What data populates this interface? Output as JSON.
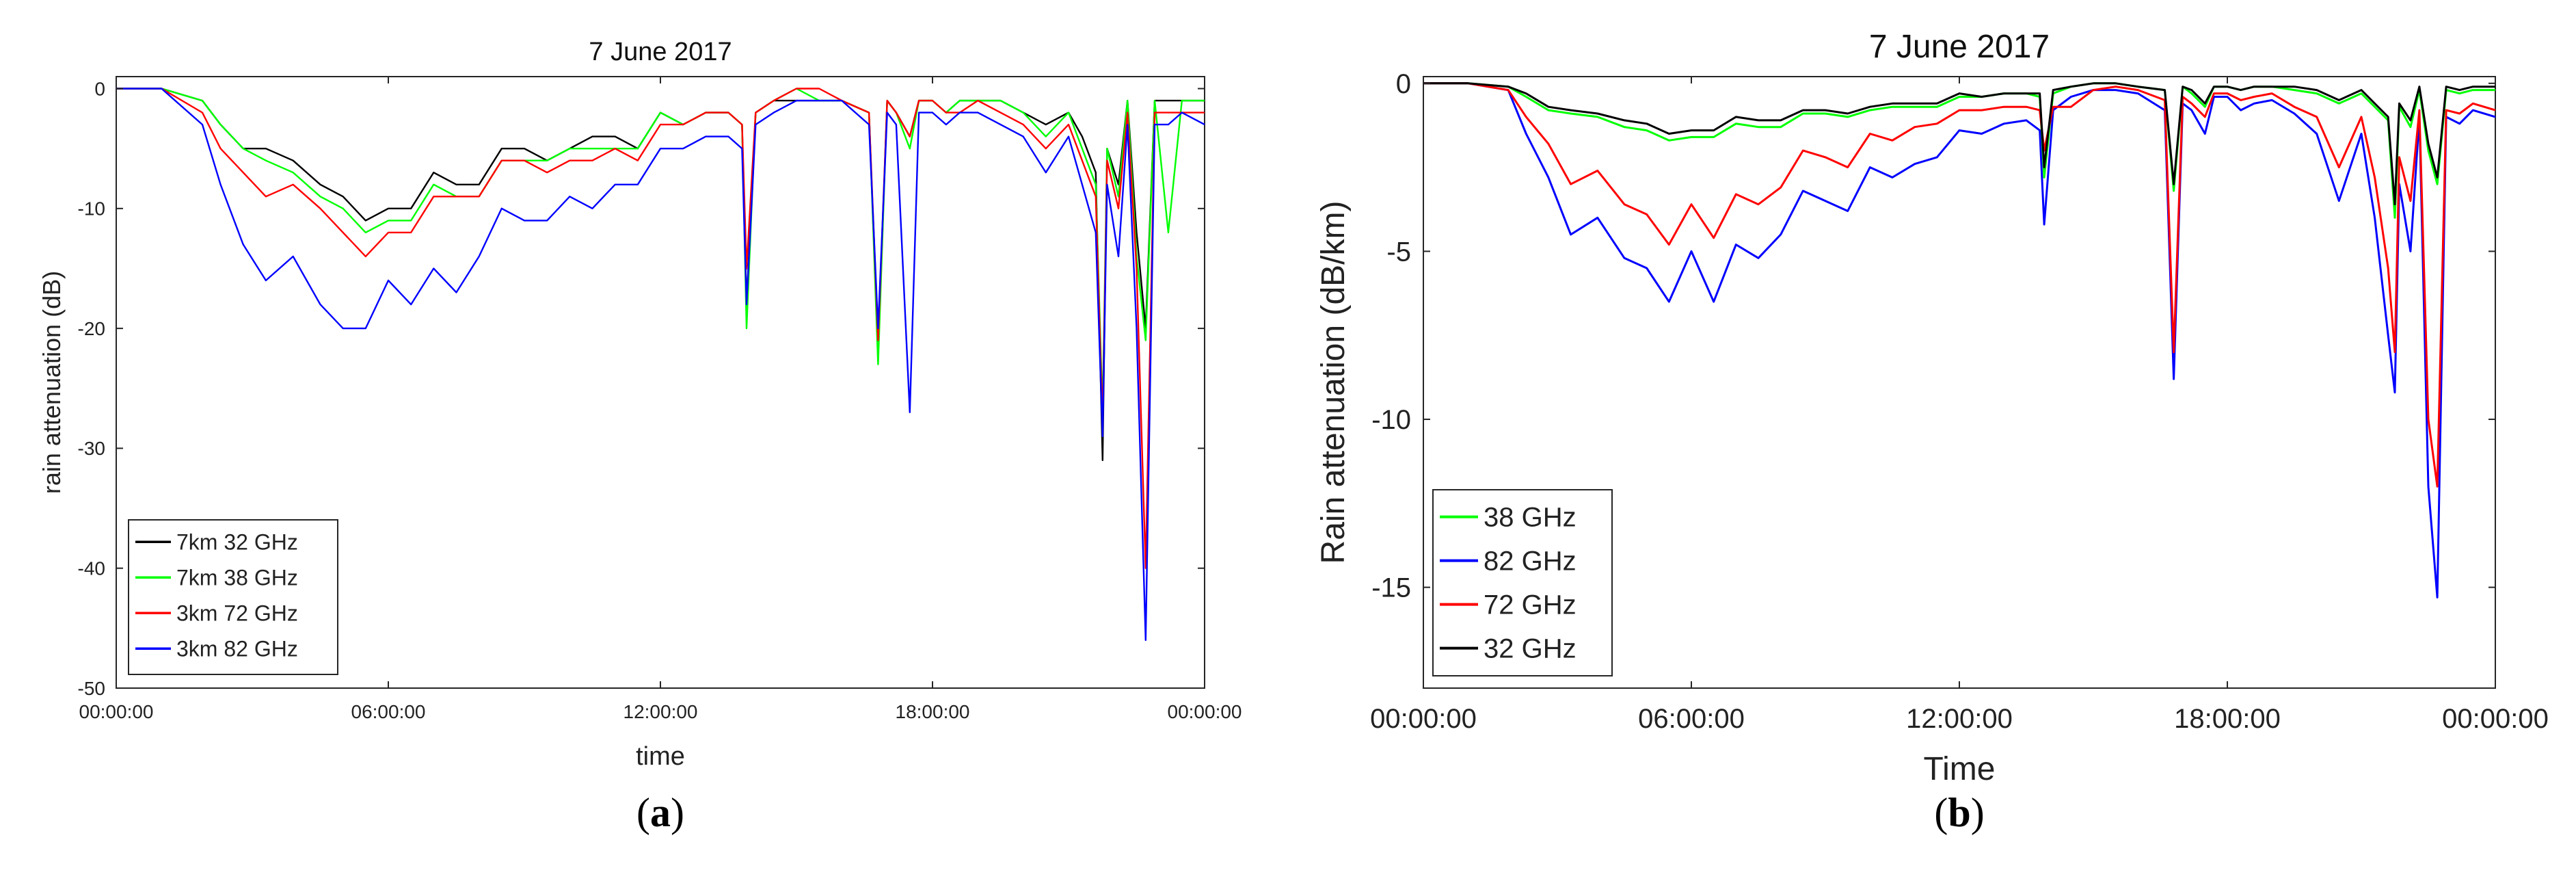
{
  "chart_data": [
    {
      "id": "a",
      "type": "line",
      "title": "7 June 2017",
      "xlabel": "time",
      "ylabel": "rain attenuation (dB)",
      "caption_letter": "a",
      "xlim": [
        0,
        24
      ],
      "ylim": [
        -50,
        1
      ],
      "xticks": [
        {
          "value": 0,
          "label": "00:00:00"
        },
        {
          "value": 6,
          "label": "06:00:00"
        },
        {
          "value": 12,
          "label": "12:00:00"
        },
        {
          "value": 18,
          "label": "18:00:00"
        },
        {
          "value": 24,
          "label": "00:00:00"
        }
      ],
      "yticks": [
        {
          "value": 0,
          "label": "0"
        },
        {
          "value": -10,
          "label": "-10"
        },
        {
          "value": -20,
          "label": "-20"
        },
        {
          "value": -30,
          "label": "-30"
        },
        {
          "value": -40,
          "label": "-40"
        },
        {
          "value": -50,
          "label": "-50"
        }
      ],
      "legend_position": "bottom-left",
      "grid": false,
      "series": [
        {
          "name": "7km 32 GHz",
          "color": "#000000",
          "x": [
            0,
            1,
            1.9,
            2.3,
            2.8,
            3.3,
            3.9,
            4.5,
            5.0,
            5.5,
            6.0,
            6.5,
            7.0,
            7.5,
            8.0,
            8.5,
            9.0,
            9.5,
            10.0,
            10.5,
            11.0,
            11.5,
            12.0,
            12.5,
            13.0,
            13.5,
            13.8,
            13.9,
            14.1,
            14.5,
            15.0,
            15.5,
            16.0,
            16.6,
            16.8,
            17.0,
            17.2,
            17.5,
            17.7,
            18.0,
            18.3,
            18.6,
            19.0,
            19.5,
            20.0,
            20.5,
            21.0,
            21.3,
            21.6,
            21.75,
            21.85,
            22.1,
            22.3,
            22.5,
            22.7,
            22.9,
            23.2,
            23.5,
            24
          ],
          "y": [
            0,
            0,
            -1,
            -3,
            -5,
            -5,
            -6,
            -8,
            -9,
            -11,
            -10,
            -10,
            -7,
            -8,
            -8,
            -5,
            -5,
            -6,
            -5,
            -4,
            -4,
            -5,
            -2,
            -3,
            -2,
            -2,
            -3,
            -18,
            -2,
            -1,
            -1,
            -1,
            -1,
            -2,
            -22,
            -1,
            -2,
            -4,
            -1,
            -1,
            -2,
            -1,
            -1,
            -1,
            -2,
            -3,
            -2,
            -4,
            -7,
            -31,
            -5,
            -8,
            -1,
            -12,
            -20,
            -1,
            -1,
            -1,
            -1
          ]
        },
        {
          "name": "7km 38 GHz",
          "color": "#00ff00",
          "x": [
            0,
            1,
            1.9,
            2.3,
            2.8,
            3.3,
            3.9,
            4.5,
            5.0,
            5.5,
            6.0,
            6.5,
            7.0,
            7.5,
            8.0,
            8.5,
            9.0,
            9.5,
            10.0,
            10.5,
            11.0,
            11.5,
            12.0,
            12.5,
            13.0,
            13.5,
            13.8,
            13.9,
            14.1,
            14.5,
            15.0,
            15.5,
            16.0,
            16.6,
            16.8,
            17.0,
            17.2,
            17.5,
            17.7,
            18.0,
            18.3,
            18.6,
            19.0,
            19.5,
            20.0,
            20.5,
            21.0,
            21.3,
            21.6,
            21.75,
            21.85,
            22.1,
            22.3,
            22.5,
            22.7,
            22.9,
            23.2,
            23.5,
            24
          ],
          "y": [
            0,
            0,
            -1,
            -3,
            -5,
            -6,
            -7,
            -9,
            -10,
            -12,
            -11,
            -11,
            -8,
            -9,
            -9,
            -6,
            -6,
            -6,
            -5,
            -5,
            -5,
            -5,
            -2,
            -3,
            -2,
            -2,
            -3,
            -20,
            -2,
            -1,
            0,
            -1,
            -1,
            -2,
            -23,
            -1,
            -2,
            -5,
            -1,
            -1,
            -2,
            -1,
            -1,
            -1,
            -2,
            -4,
            -2,
            -5,
            -8,
            -27,
            -5,
            -9,
            -1,
            -14,
            -21,
            -1,
            -12,
            -1,
            -1
          ]
        },
        {
          "name": "3km 72 GHz",
          "color": "#ff0000",
          "x": [
            0,
            1,
            1.9,
            2.3,
            2.8,
            3.3,
            3.9,
            4.5,
            5.0,
            5.5,
            6.0,
            6.5,
            7.0,
            7.5,
            8.0,
            8.5,
            9.0,
            9.5,
            10.0,
            10.5,
            11.0,
            11.5,
            12.0,
            12.5,
            13.0,
            13.5,
            13.8,
            13.9,
            14.1,
            14.5,
            15.0,
            15.5,
            16.0,
            16.6,
            16.8,
            17.0,
            17.2,
            17.5,
            17.7,
            18.0,
            18.3,
            18.6,
            19.0,
            19.5,
            20.0,
            20.5,
            21.0,
            21.3,
            21.6,
            21.75,
            21.85,
            22.1,
            22.3,
            22.5,
            22.7,
            22.9,
            23.2,
            23.5,
            24
          ],
          "y": [
            0,
            0,
            -2,
            -5,
            -7,
            -9,
            -8,
            -10,
            -12,
            -14,
            -12,
            -12,
            -9,
            -9,
            -9,
            -6,
            -6,
            -7,
            -6,
            -6,
            -5,
            -6,
            -3,
            -3,
            -2,
            -2,
            -3,
            -15,
            -2,
            -1,
            0,
            0,
            -1,
            -2,
            -21,
            -1,
            -2,
            -4,
            -1,
            -1,
            -2,
            -2,
            -1,
            -2,
            -3,
            -5,
            -3,
            -6,
            -9,
            -28,
            -6,
            -10,
            -2,
            -15,
            -40,
            -2,
            -2,
            -2,
            -2
          ]
        },
        {
          "name": "3km 82 GHz",
          "color": "#0000ff",
          "x": [
            0,
            1,
            1.9,
            2.3,
            2.8,
            3.3,
            3.9,
            4.5,
            5.0,
            5.5,
            6.0,
            6.5,
            7.0,
            7.5,
            8.0,
            8.5,
            9.0,
            9.5,
            10.0,
            10.5,
            11.0,
            11.5,
            12.0,
            12.5,
            13.0,
            13.5,
            13.8,
            13.9,
            14.1,
            14.5,
            15.0,
            15.5,
            16.0,
            16.6,
            16.8,
            17.0,
            17.2,
            17.5,
            17.7,
            18.0,
            18.3,
            18.6,
            19.0,
            19.5,
            20.0,
            20.5,
            21.0,
            21.3,
            21.6,
            21.75,
            21.85,
            22.1,
            22.3,
            22.5,
            22.7,
            22.9,
            23.2,
            23.5,
            24
          ],
          "y": [
            0,
            0,
            -3,
            -8,
            -13,
            -16,
            -14,
            -18,
            -20,
            -20,
            -16,
            -18,
            -15,
            -17,
            -14,
            -10,
            -11,
            -11,
            -9,
            -10,
            -8,
            -8,
            -5,
            -5,
            -4,
            -4,
            -5,
            -18,
            -3,
            -2,
            -1,
            -1,
            -1,
            -3,
            -20,
            -2,
            -3,
            -27,
            -2,
            -2,
            -3,
            -2,
            -2,
            -3,
            -4,
            -7,
            -4,
            -8,
            -12,
            -29,
            -8,
            -14,
            -3,
            -20,
            -46,
            -3,
            -3,
            -2,
            -3
          ]
        }
      ]
    },
    {
      "id": "b",
      "type": "line",
      "title": "7 June 2017",
      "xlabel": "Time",
      "ylabel": "Rain attenuation (dB/km)",
      "caption_letter": "b",
      "xlim": [
        0,
        24
      ],
      "ylim": [
        -18,
        0.2
      ],
      "xticks": [
        {
          "value": 0,
          "label": "00:00:00"
        },
        {
          "value": 6,
          "label": "06:00:00"
        },
        {
          "value": 12,
          "label": "12:00:00"
        },
        {
          "value": 18,
          "label": "18:00:00"
        },
        {
          "value": 24,
          "label": "00:00:00"
        }
      ],
      "yticks": [
        {
          "value": 0,
          "label": "0"
        },
        {
          "value": -5,
          "label": "-5"
        },
        {
          "value": -10,
          "label": "-10"
        },
        {
          "value": -15,
          "label": "-15"
        }
      ],
      "legend_position": "bottom-left",
      "grid": false,
      "series": [
        {
          "name": "38 GHz",
          "color": "#00ff00",
          "x": [
            0,
            1,
            1.9,
            2.3,
            2.8,
            3.3,
            3.9,
            4.5,
            5.0,
            5.5,
            6.0,
            6.5,
            7.0,
            7.5,
            8.0,
            8.5,
            9.0,
            9.5,
            10.0,
            10.5,
            11.0,
            11.5,
            12.0,
            12.5,
            13.0,
            13.5,
            13.8,
            13.9,
            14.1,
            14.5,
            15.0,
            15.5,
            16.0,
            16.6,
            16.8,
            17.0,
            17.2,
            17.5,
            17.7,
            18.0,
            18.3,
            18.6,
            19.0,
            19.5,
            20.0,
            20.5,
            21.0,
            21.3,
            21.6,
            21.75,
            21.85,
            22.1,
            22.3,
            22.5,
            22.7,
            22.9,
            23.2,
            23.5,
            24
          ],
          "y": [
            0,
            0,
            -0.1,
            -0.4,
            -0.8,
            -0.9,
            -1.0,
            -1.3,
            -1.4,
            -1.7,
            -1.6,
            -1.6,
            -1.2,
            -1.3,
            -1.3,
            -0.9,
            -0.9,
            -1.0,
            -0.8,
            -0.7,
            -0.7,
            -0.7,
            -0.4,
            -0.4,
            -0.3,
            -0.3,
            -0.4,
            -2.8,
            -0.3,
            -0.1,
            0,
            0,
            -0.1,
            -0.2,
            -3.2,
            -0.1,
            -0.3,
            -0.7,
            -0.1,
            -0.1,
            -0.2,
            -0.1,
            -0.1,
            -0.2,
            -0.3,
            -0.6,
            -0.3,
            -0.7,
            -1.1,
            -4.0,
            -0.7,
            -1.3,
            -0.2,
            -2.0,
            -3.0,
            -0.2,
            -0.3,
            -0.2,
            -0.2
          ]
        },
        {
          "name": "82 GHz",
          "color": "#0000ff",
          "x": [
            0,
            1,
            1.9,
            2.3,
            2.8,
            3.3,
            3.9,
            4.5,
            5.0,
            5.5,
            6.0,
            6.5,
            7.0,
            7.5,
            8.0,
            8.5,
            9.0,
            9.5,
            10.0,
            10.5,
            11.0,
            11.5,
            12.0,
            12.5,
            13.0,
            13.5,
            13.8,
            13.9,
            14.1,
            14.5,
            15.0,
            15.5,
            16.0,
            16.6,
            16.8,
            17.0,
            17.2,
            17.5,
            17.7,
            18.0,
            18.3,
            18.6,
            19.0,
            19.5,
            20.0,
            20.5,
            21.0,
            21.3,
            21.6,
            21.75,
            21.85,
            22.1,
            22.3,
            22.5,
            22.7,
            22.9,
            23.2,
            23.5,
            24
          ],
          "y": [
            0,
            0,
            -0.2,
            -1.5,
            -2.8,
            -4.5,
            -4.0,
            -5.2,
            -5.5,
            -6.5,
            -5.0,
            -6.5,
            -4.8,
            -5.2,
            -4.5,
            -3.2,
            -3.5,
            -3.8,
            -2.5,
            -2.8,
            -2.4,
            -2.2,
            -1.4,
            -1.5,
            -1.2,
            -1.1,
            -1.4,
            -4.2,
            -0.8,
            -0.4,
            -0.2,
            -0.2,
            -0.3,
            -0.8,
            -8.8,
            -0.6,
            -0.8,
            -1.5,
            -0.4,
            -0.4,
            -0.8,
            -0.6,
            -0.5,
            -0.9,
            -1.5,
            -3.5,
            -1.5,
            -4.0,
            -7.5,
            -9.2,
            -3.0,
            -5.0,
            -1.0,
            -12.0,
            -15.3,
            -1.0,
            -1.2,
            -0.8,
            -1.0
          ]
        },
        {
          "name": "72 GHz",
          "color": "#ff0000",
          "x": [
            0,
            1,
            1.9,
            2.3,
            2.8,
            3.3,
            3.9,
            4.5,
            5.0,
            5.5,
            6.0,
            6.5,
            7.0,
            7.5,
            8.0,
            8.5,
            9.0,
            9.5,
            10.0,
            10.5,
            11.0,
            11.5,
            12.0,
            12.5,
            13.0,
            13.5,
            13.8,
            13.9,
            14.1,
            14.5,
            15.0,
            15.5,
            16.0,
            16.6,
            16.8,
            17.0,
            17.2,
            17.5,
            17.7,
            18.0,
            18.3,
            18.6,
            19.0,
            19.5,
            20.0,
            20.5,
            21.0,
            21.3,
            21.6,
            21.75,
            21.85,
            22.1,
            22.3,
            22.5,
            22.7,
            22.9,
            23.2,
            23.5,
            24
          ],
          "y": [
            0,
            0,
            -0.2,
            -1.0,
            -1.8,
            -3.0,
            -2.6,
            -3.6,
            -3.9,
            -4.8,
            -3.6,
            -4.6,
            -3.3,
            -3.6,
            -3.1,
            -2.0,
            -2.2,
            -2.5,
            -1.5,
            -1.7,
            -1.3,
            -1.2,
            -0.8,
            -0.8,
            -0.7,
            -0.7,
            -0.8,
            -2.0,
            -0.7,
            -0.7,
            -0.2,
            -0.1,
            -0.2,
            -0.5,
            -8.0,
            -0.4,
            -0.6,
            -1.0,
            -0.3,
            -0.3,
            -0.5,
            -0.4,
            -0.3,
            -0.7,
            -1.0,
            -2.5,
            -1.0,
            -2.8,
            -5.5,
            -8.0,
            -2.2,
            -3.5,
            -0.8,
            -10.0,
            -12.0,
            -0.8,
            -0.9,
            -0.6,
            -0.8
          ]
        },
        {
          "name": "32 GHz",
          "color": "#000000",
          "x": [
            0,
            1,
            1.9,
            2.3,
            2.8,
            3.3,
            3.9,
            4.5,
            5.0,
            5.5,
            6.0,
            6.5,
            7.0,
            7.5,
            8.0,
            8.5,
            9.0,
            9.5,
            10.0,
            10.5,
            11.0,
            11.5,
            12.0,
            12.5,
            13.0,
            13.5,
            13.8,
            13.9,
            14.1,
            14.5,
            15.0,
            15.5,
            16.0,
            16.6,
            16.8,
            17.0,
            17.2,
            17.5,
            17.7,
            18.0,
            18.3,
            18.6,
            19.0,
            19.5,
            20.0,
            20.5,
            21.0,
            21.3,
            21.6,
            21.75,
            21.85,
            22.1,
            22.3,
            22.5,
            22.7,
            22.9,
            23.2,
            23.5,
            24
          ],
          "y": [
            0,
            0,
            -0.1,
            -0.3,
            -0.7,
            -0.8,
            -0.9,
            -1.1,
            -1.2,
            -1.5,
            -1.4,
            -1.4,
            -1.0,
            -1.1,
            -1.1,
            -0.8,
            -0.8,
            -0.9,
            -0.7,
            -0.6,
            -0.6,
            -0.6,
            -0.3,
            -0.4,
            -0.3,
            -0.3,
            -0.3,
            -2.5,
            -0.2,
            -0.1,
            0,
            0,
            -0.1,
            -0.2,
            -3.0,
            -0.1,
            -0.2,
            -0.6,
            -0.1,
            -0.1,
            -0.2,
            -0.1,
            -0.1,
            -0.1,
            -0.2,
            -0.5,
            -0.2,
            -0.6,
            -1.0,
            -3.6,
            -0.6,
            -1.1,
            -0.1,
            -1.8,
            -2.8,
            -0.1,
            -0.2,
            -0.1,
            -0.1
          ]
        }
      ]
    }
  ]
}
